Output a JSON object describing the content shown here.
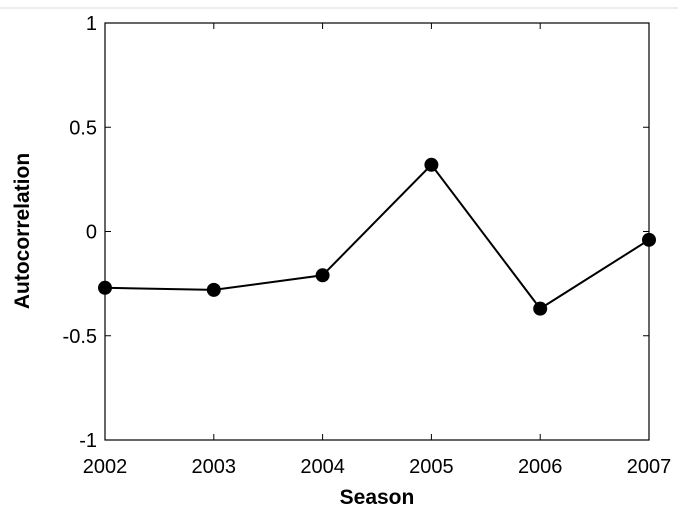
{
  "chart_data": {
    "type": "line",
    "xlabel": "Season",
    "ylabel": "Autocorrelation",
    "x": [
      2002,
      2003,
      2004,
      2005,
      2006,
      2007
    ],
    "series": [
      {
        "color": "#000000",
        "values": [
          -0.27,
          -0.28,
          -0.21,
          0.32,
          -0.37,
          -0.04
        ]
      }
    ],
    "xlim": [
      2002,
      2007
    ],
    "xticks": [
      2002,
      2003,
      2004,
      2005,
      2006,
      2007
    ],
    "ylim": [
      -1,
      1
    ],
    "yticks": [
      -1,
      -0.5,
      0,
      0.5,
      1
    ]
  }
}
